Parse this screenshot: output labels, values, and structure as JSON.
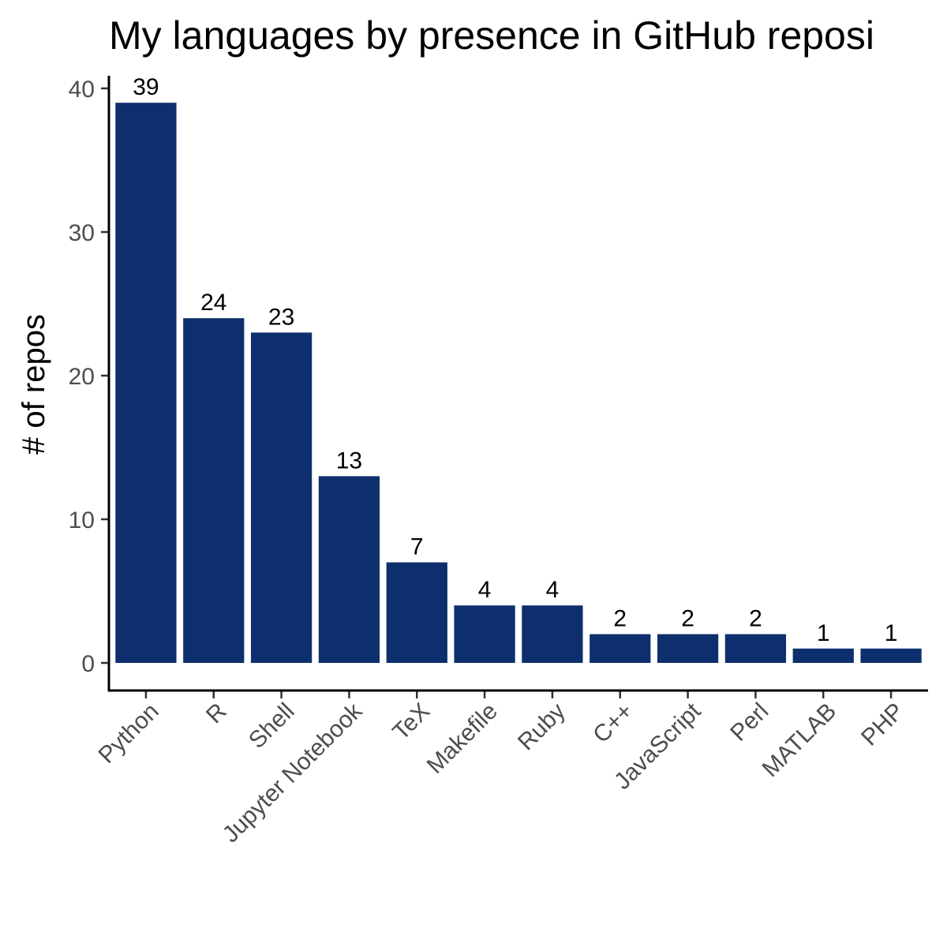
{
  "chart_data": {
    "type": "bar",
    "title": "My languages by presence in GitHub reposi",
    "xlabel": "",
    "ylabel": "# of repos",
    "ylim": [
      0,
      40
    ],
    "yticks": [
      0,
      10,
      20,
      30,
      40
    ],
    "categories": [
      "Python",
      "R",
      "Shell",
      "Jupyter Notebook",
      "TeX",
      "Makefile",
      "Ruby",
      "C++",
      "JavaScript",
      "Perl",
      "MATLAB",
      "PHP"
    ],
    "values": [
      39,
      24,
      23,
      13,
      7,
      4,
      4,
      2,
      2,
      2,
      1,
      1
    ],
    "data_labels": [
      "39",
      "24",
      "23",
      "13",
      "7",
      "4",
      "4",
      "2",
      "2",
      "2",
      "1",
      "1"
    ],
    "bar_color": "#0e2f6d",
    "grid": false,
    "legend": "none"
  }
}
